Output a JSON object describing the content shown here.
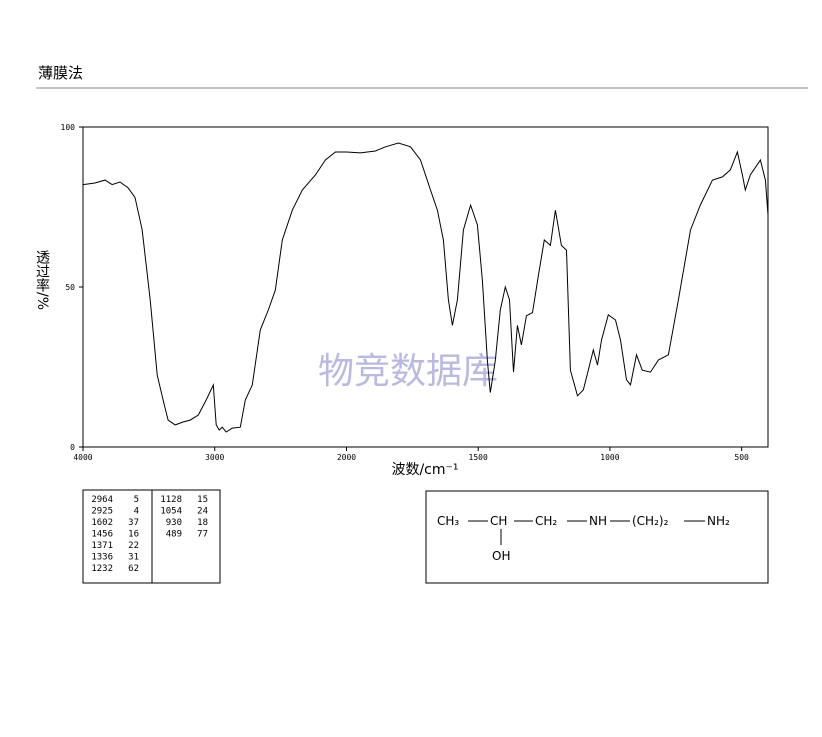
{
  "chart_data": {
    "type": "line",
    "title": "薄膜法",
    "xlabel": "波数/cm⁻¹",
    "ylabel": "透过率/%",
    "watermark": "物竞数据库",
    "color": "#000000",
    "xlim": [
      4000,
      400
    ],
    "x_scale_break": 2000,
    "xticks": [
      4000,
      3000,
      2000,
      1500,
      1000,
      500
    ],
    "ylim": [
      0,
      100
    ],
    "yticks": [
      0,
      50,
      100
    ],
    "x": [
      4000,
      3909,
      3833,
      3779,
      3719,
      3658,
      3605,
      3551,
      3490,
      3437,
      3392,
      3354,
      3300,
      3240,
      3186,
      3125,
      3065,
      3011,
      2989,
      2966,
      2943,
      2913,
      2867,
      2806,
      2768,
      2715,
      2654,
      2593,
      2540,
      2487,
      2411,
      2335,
      2236,
      2160,
      2084,
      2000,
      1947,
      1890,
      1852,
      1803,
      1757,
      1719,
      1681,
      1655,
      1632,
      1613,
      1598,
      1579,
      1556,
      1529,
      1503,
      1484,
      1465,
      1454,
      1435,
      1416,
      1397,
      1381,
      1366,
      1351,
      1336,
      1317,
      1294,
      1271,
      1249,
      1226,
      1207,
      1184,
      1165,
      1150,
      1123,
      1101,
      1082,
      1063,
      1047,
      1032,
      1006,
      979,
      960,
      937,
      922,
      899,
      877,
      846,
      816,
      778,
      740,
      694,
      657,
      611,
      573,
      543,
      516,
      497,
      486,
      467,
      429,
      410,
      400
    ],
    "values": [
      82,
      82.5,
      83.4,
      82,
      82.8,
      81,
      78,
      68,
      46,
      22.5,
      14.7,
      8.4,
      6.9,
      7.8,
      8.4,
      10,
      14.7,
      19.4,
      6.9,
      5.3,
      6.2,
      4.7,
      5.9,
      6.2,
      14.7,
      19.4,
      36.6,
      42.8,
      49,
      64.7,
      74,
      80.3,
      85,
      89.7,
      92.2,
      92.2,
      91.9,
      92.5,
      93.8,
      95,
      93.8,
      89.7,
      80.3,
      74,
      64.7,
      46,
      38,
      46,
      67.8,
      75.6,
      69.4,
      52,
      27,
      17,
      27,
      42.8,
      50,
      46,
      23.4,
      38,
      31.9,
      41,
      42,
      53.8,
      64.7,
      63,
      74,
      63,
      61.5,
      24,
      16,
      17.8,
      24,
      30.3,
      25.6,
      33.4,
      41.3,
      39.7,
      33.4,
      21,
      19.4,
      28.8,
      24,
      23.4,
      27.2,
      28.8,
      46,
      67.8,
      75.6,
      83.4,
      84.4,
      86.6,
      92.2,
      85,
      80.3,
      85,
      89.7,
      83.4,
      72.5
    ],
    "peak_table": [
      [
        2964,
        5
      ],
      [
        2925,
        4
      ],
      [
        1602,
        37
      ],
      [
        1456,
        16
      ],
      [
        1371,
        22
      ],
      [
        1336,
        31
      ],
      [
        1232,
        62
      ],
      [
        1128,
        15
      ],
      [
        1054,
        24
      ],
      [
        930,
        18
      ],
      [
        489,
        77
      ]
    ],
    "structure": {
      "main": [
        "CH₃",
        "CH",
        "CH₂",
        "NH",
        "(CH₂)₂",
        "NH₂"
      ],
      "branch": "OH"
    }
  }
}
